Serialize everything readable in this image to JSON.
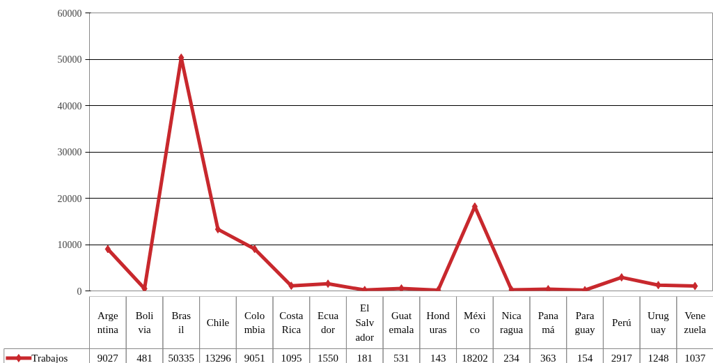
{
  "chart_data": {
    "type": "line",
    "categories": [
      "Argentina",
      "Bolivia",
      "Brasil",
      "Chile",
      "Colombia",
      "Costa Rica",
      "Ecuador",
      "El Salvador",
      "Guatemala",
      "Honduras",
      "México",
      "Nicaragua",
      "Panamá",
      "Paraguay",
      "Perú",
      "Uruguay",
      "Venezuela"
    ],
    "series": [
      {
        "name": "Trabajos",
        "color": "#c8282d",
        "values": [
          9027,
          481,
          50335,
          13296,
          9051,
          1095,
          1550,
          181,
          531,
          143,
          18202,
          234,
          363,
          154,
          2917,
          1248,
          1037
        ]
      }
    ],
    "ylim": [
      0,
      60000
    ],
    "yticks": [
      0,
      10000,
      20000,
      30000,
      40000,
      50000,
      60000
    ],
    "grid": "y",
    "marker": "diamond",
    "line_style": "solid",
    "legend": "bottom left",
    "data_labels": true
  }
}
